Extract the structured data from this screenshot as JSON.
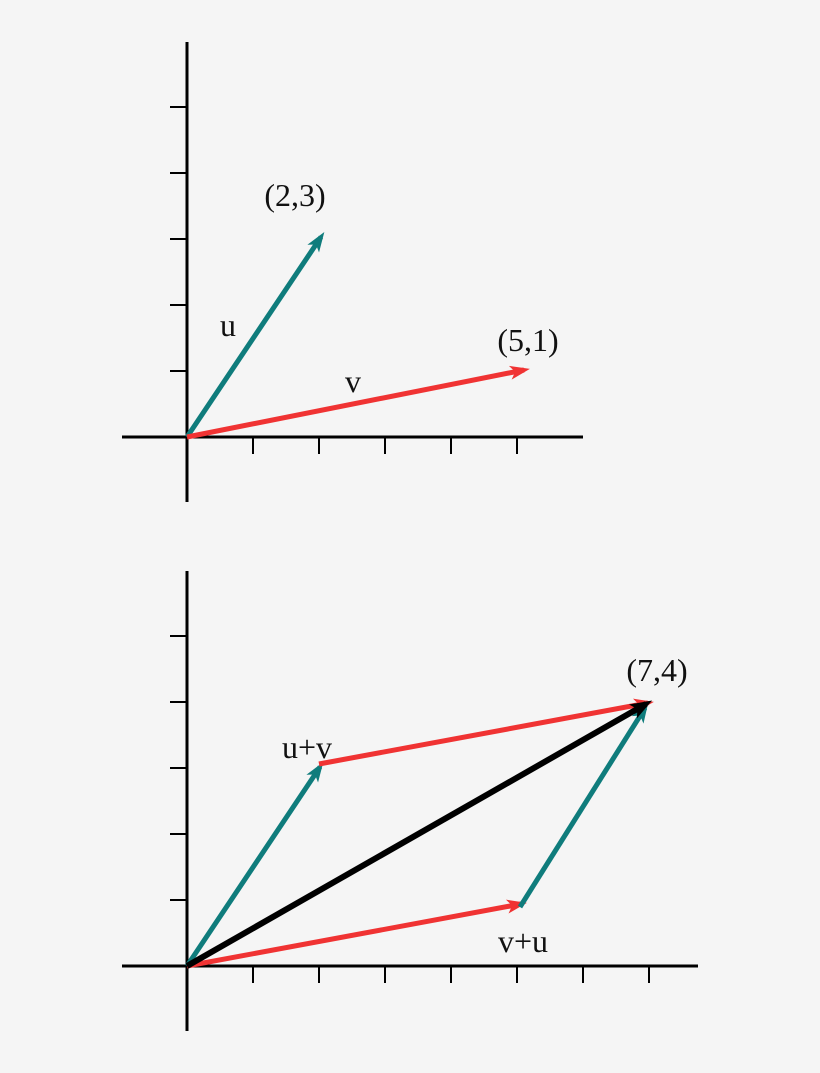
{
  "panels": [
    {
      "labels": {
        "u_point": "(2,3)",
        "u": "u",
        "v_point": "(5,1)",
        "v": "v"
      }
    },
    {
      "labels": {
        "sum_point": "(7,4)",
        "u_plus_v": "u+v",
        "v_plus_u": "v+u"
      }
    }
  ]
}
